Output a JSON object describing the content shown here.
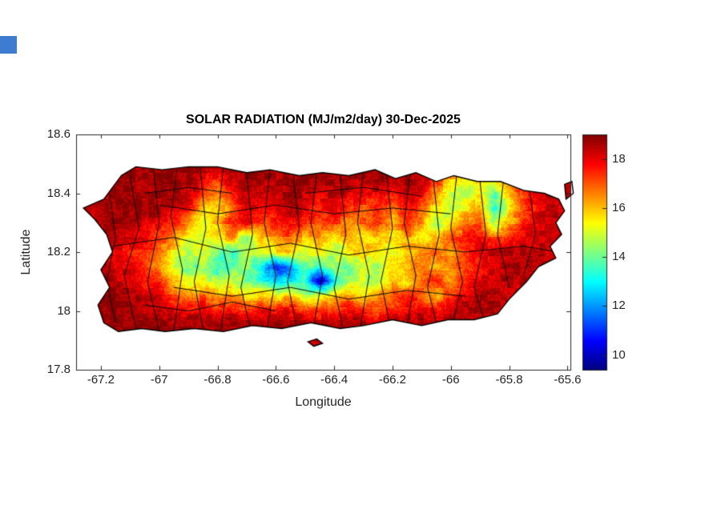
{
  "artifacts": {
    "top_left_square_color": "#3d7cd0"
  },
  "chart_data": {
    "type": "heatmap",
    "title": "SOLAR RADIATION (MJ/m2/day) 30-Dec-2025",
    "xlabel": "Longitude",
    "ylabel": "Latitude",
    "xlim": [
      -67.285,
      -65.59
    ],
    "ylim": [
      17.8,
      18.6
    ],
    "xticks": [
      -67.2,
      -67,
      -66.8,
      -66.6,
      -66.4,
      -66.2,
      -66,
      -65.8,
      -65.6
    ],
    "xtick_labels": [
      "-67.2",
      "-67",
      "-66.8",
      "-66.6",
      "-66.4",
      "-66.2",
      "-66",
      "-65.8",
      "-65.6"
    ],
    "yticks": [
      17.8,
      18,
      18.2,
      18.4,
      18.6
    ],
    "ytick_labels": [
      "17.8",
      "18",
      "18.2",
      "18.4",
      "18.6"
    ],
    "colormap": "jet",
    "clim": [
      9.4,
      19
    ],
    "colorbar_ticks": [
      10,
      12,
      14,
      16,
      18
    ],
    "colorbar_tick_labels": [
      "10",
      "12",
      "14",
      "16",
      "18"
    ],
    "grid": {
      "lon_start": -67.25,
      "lon_step": 0.05,
      "lat_start": 18.5,
      "lat_step": -0.05,
      "values": [
        [
          null,
          null,
          null,
          18.8,
          18.8,
          18.8,
          18.8,
          18.8,
          18.5,
          18.3,
          18.8,
          18.8,
          18.8,
          18.8,
          18.5,
          18.8,
          18.8,
          18.8,
          18.8,
          18.8,
          18.8,
          18.8,
          18.8,
          18.5,
          18.3,
          18.3,
          null,
          null,
          null,
          null,
          null,
          null,
          null,
          null
        ],
        [
          null,
          null,
          18.5,
          18.8,
          18.8,
          18.8,
          18.8,
          18.8,
          18.2,
          17.5,
          18.5,
          18.8,
          18.8,
          18.5,
          18.8,
          18.8,
          18.5,
          18.8,
          18.8,
          18.5,
          18.8,
          18.5,
          18.8,
          18.5,
          17.5,
          16.0,
          15.5,
          15.0,
          16.0,
          17.0,
          18.0,
          18.5,
          18.3,
          null
        ],
        [
          null,
          18.5,
          18.8,
          18.8,
          18.5,
          18.8,
          18.8,
          18.5,
          17.5,
          16.5,
          17.5,
          18.5,
          18.2,
          18.5,
          18.8,
          18.5,
          18.2,
          18.5,
          18.2,
          17.8,
          18.2,
          17.8,
          18.5,
          17.8,
          16.5,
          15.0,
          14.5,
          15.5,
          14.0,
          16.0,
          17.5,
          18.2,
          18.5,
          18.3
        ],
        [
          18.3,
          18.3,
          18.8,
          18.8,
          18.8,
          18.5,
          18.2,
          17.8,
          16.0,
          15.5,
          17.0,
          18.2,
          17.8,
          18.2,
          18.5,
          18.0,
          17.5,
          18.0,
          17.5,
          17.0,
          17.5,
          16.5,
          17.8,
          17.0,
          15.5,
          14.5,
          15.5,
          16.5,
          13.0,
          15.5,
          17.0,
          18.0,
          18.3,
          18.0
        ],
        [
          18.5,
          18.5,
          18.8,
          18.5,
          18.2,
          18.0,
          17.5,
          16.5,
          15.0,
          16.0,
          17.5,
          17.8,
          17.0,
          17.5,
          18.0,
          17.5,
          17.0,
          17.5,
          16.5,
          17.0,
          17.5,
          16.0,
          17.5,
          16.5,
          14.5,
          15.5,
          16.5,
          17.0,
          14.5,
          16.0,
          17.5,
          18.2,
          18.5,
          18.3
        ],
        [
          null,
          18.3,
          18.5,
          18.2,
          17.8,
          17.2,
          16.5,
          15.5,
          15.0,
          15.5,
          16.5,
          14.0,
          16.0,
          16.5,
          17.0,
          16.0,
          16.5,
          15.5,
          16.5,
          15.5,
          16.0,
          15.5,
          16.5,
          15.0,
          16.0,
          17.0,
          17.5,
          17.8,
          17.0,
          17.5,
          18.0,
          18.3,
          18.5,
          null
        ],
        [
          null,
          18.2,
          18.0,
          17.8,
          17.5,
          17.0,
          15.5,
          14.5,
          15.0,
          14.0,
          13.5,
          14.5,
          15.0,
          15.5,
          16.0,
          15.0,
          15.5,
          14.5,
          15.5,
          16.0,
          15.5,
          15.0,
          16.0,
          16.5,
          17.0,
          16.5,
          17.5,
          18.0,
          18.3,
          18.5,
          18.5,
          18.5,
          18.3,
          null
        ],
        [
          null,
          18.5,
          18.2,
          18.0,
          17.5,
          16.5,
          15.0,
          14.0,
          14.5,
          13.5,
          14.0,
          14.5,
          13.0,
          11.0,
          12.0,
          14.0,
          13.5,
          14.5,
          14.0,
          15.0,
          14.5,
          15.5,
          16.0,
          16.5,
          16.0,
          16.5,
          17.0,
          17.8,
          18.2,
          18.5,
          18.5,
          18.3,
          null,
          null
        ],
        [
          null,
          18.8,
          18.5,
          18.2,
          17.8,
          17.5,
          16.0,
          15.0,
          15.5,
          14.5,
          15.0,
          14.0,
          13.5,
          12.5,
          13.0,
          13.5,
          9.5,
          13.0,
          14.5,
          15.0,
          14.5,
          16.0,
          15.5,
          17.0,
          17.5,
          16.5,
          17.5,
          18.0,
          18.3,
          18.5,
          18.5,
          null,
          null,
          null
        ],
        [
          null,
          18.8,
          18.8,
          18.5,
          18.2,
          18.0,
          17.0,
          16.5,
          17.0,
          16.0,
          16.5,
          15.5,
          16.0,
          15.5,
          16.0,
          14.5,
          15.5,
          16.0,
          16.5,
          15.5,
          16.5,
          17.0,
          17.5,
          17.0,
          16.0,
          17.5,
          18.2,
          18.5,
          18.5,
          18.3,
          null,
          null,
          null,
          null
        ],
        [
          null,
          18.8,
          18.8,
          18.8,
          18.5,
          18.5,
          18.2,
          18.0,
          18.2,
          17.8,
          18.0,
          17.5,
          18.0,
          17.8,
          18.0,
          17.5,
          17.0,
          17.5,
          18.0,
          17.5,
          17.0,
          17.5,
          18.0,
          18.2,
          17.8,
          18.2,
          18.5,
          18.5,
          null,
          null,
          null,
          null,
          null,
          null
        ],
        [
          null,
          18.8,
          18.8,
          18.8,
          18.8,
          18.8,
          18.5,
          18.8,
          18.5,
          18.8,
          18.8,
          18.5,
          18.8,
          18.8,
          18.5,
          18.8,
          18.8,
          18.5,
          18.8,
          18.8,
          18.5,
          18.8,
          18.8,
          18.8,
          18.5,
          18.8,
          null,
          null,
          null,
          null,
          null,
          null,
          null,
          null
        ],
        [
          null,
          null,
          18.8,
          18.8,
          null,
          null,
          null,
          null,
          null,
          null,
          null,
          null,
          null,
          null,
          null,
          null,
          18.5,
          null,
          null,
          null,
          null,
          null,
          null,
          null,
          null,
          null,
          null,
          null,
          null,
          null,
          null,
          null,
          null,
          null
        ]
      ]
    },
    "island_outline": [
      [
        -67.13,
        18.46
      ],
      [
        -67.08,
        18.49
      ],
      [
        -66.99,
        18.48
      ],
      [
        -66.9,
        18.49
      ],
      [
        -66.8,
        18.49
      ],
      [
        -66.7,
        18.47
      ],
      [
        -66.62,
        18.48
      ],
      [
        -66.52,
        18.46
      ],
      [
        -66.44,
        18.47
      ],
      [
        -66.35,
        18.46
      ],
      [
        -66.26,
        18.48
      ],
      [
        -66.19,
        18.45
      ],
      [
        -66.12,
        18.47
      ],
      [
        -66.05,
        18.44
      ],
      [
        -65.99,
        18.46
      ],
      [
        -65.91,
        18.44
      ],
      [
        -65.83,
        18.44
      ],
      [
        -65.75,
        18.41
      ],
      [
        -65.68,
        18.4
      ],
      [
        -65.63,
        18.38
      ],
      [
        -65.61,
        18.34
      ],
      [
        -65.64,
        18.3
      ],
      [
        -65.62,
        18.26
      ],
      [
        -65.66,
        18.22
      ],
      [
        -65.64,
        18.18
      ],
      [
        -65.7,
        18.15
      ],
      [
        -65.74,
        18.1
      ],
      [
        -65.8,
        18.04
      ],
      [
        -65.84,
        17.99
      ],
      [
        -65.92,
        17.97
      ],
      [
        -66.01,
        17.97
      ],
      [
        -66.1,
        17.95
      ],
      [
        -66.2,
        17.97
      ],
      [
        -66.3,
        17.95
      ],
      [
        -66.38,
        17.94
      ],
      [
        -66.48,
        17.96
      ],
      [
        -66.58,
        17.94
      ],
      [
        -66.68,
        17.95
      ],
      [
        -66.78,
        17.93
      ],
      [
        -66.88,
        17.94
      ],
      [
        -66.98,
        17.93
      ],
      [
        -67.06,
        17.94
      ],
      [
        -67.14,
        17.93
      ],
      [
        -67.19,
        17.96
      ],
      [
        -67.21,
        18.02
      ],
      [
        -67.17,
        18.08
      ],
      [
        -67.2,
        18.14
      ],
      [
        -67.16,
        18.2
      ],
      [
        -67.18,
        18.26
      ],
      [
        -67.22,
        18.31
      ],
      [
        -67.26,
        18.35
      ],
      [
        -67.19,
        18.38
      ],
      [
        -67.16,
        18.42
      ]
    ],
    "islets": [
      [
        [
          -65.61,
          18.43
        ],
        [
          -65.585,
          18.44
        ],
        [
          -65.58,
          18.4
        ],
        [
          -65.605,
          18.38
        ]
      ],
      [
        [
          -66.49,
          17.895
        ],
        [
          -66.46,
          17.905
        ],
        [
          -66.44,
          17.89
        ],
        [
          -66.47,
          17.88
        ]
      ]
    ],
    "boundaries": [
      [
        [
          -67.17,
          18.4
        ],
        [
          -67.15,
          18.25
        ],
        [
          -67.18,
          18.1
        ],
        [
          -67.15,
          17.96
        ]
      ],
      [
        [
          -67.1,
          18.46
        ],
        [
          -67.07,
          18.28
        ],
        [
          -67.12,
          18.12
        ],
        [
          -67.08,
          17.94
        ]
      ],
      [
        [
          -67.02,
          18.48
        ],
        [
          -67.0,
          18.3
        ],
        [
          -67.04,
          18.1
        ],
        [
          -67.0,
          17.93
        ]
      ],
      [
        [
          -66.94,
          18.48
        ],
        [
          -66.96,
          18.32
        ],
        [
          -66.92,
          18.14
        ],
        [
          -66.95,
          17.93
        ]
      ],
      [
        [
          -66.86,
          18.49
        ],
        [
          -66.84,
          18.28
        ],
        [
          -66.88,
          18.1
        ],
        [
          -66.85,
          17.94
        ]
      ],
      [
        [
          -66.78,
          18.49
        ],
        [
          -66.8,
          18.3
        ],
        [
          -66.76,
          18.12
        ],
        [
          -66.79,
          17.93
        ]
      ],
      [
        [
          -66.7,
          18.47
        ],
        [
          -66.68,
          18.26
        ],
        [
          -66.72,
          18.08
        ],
        [
          -66.69,
          17.95
        ]
      ],
      [
        [
          -66.62,
          18.48
        ],
        [
          -66.64,
          18.3
        ],
        [
          -66.6,
          18.12
        ],
        [
          -66.63,
          17.94
        ]
      ],
      [
        [
          -66.54,
          18.46
        ],
        [
          -66.52,
          18.28
        ],
        [
          -66.56,
          18.1
        ],
        [
          -66.53,
          17.95
        ]
      ],
      [
        [
          -66.46,
          18.47
        ],
        [
          -66.48,
          18.3
        ],
        [
          -66.44,
          18.12
        ],
        [
          -66.47,
          17.95
        ]
      ],
      [
        [
          -66.38,
          18.46
        ],
        [
          -66.36,
          18.26
        ],
        [
          -66.4,
          18.08
        ],
        [
          -66.37,
          17.94
        ]
      ],
      [
        [
          -66.3,
          18.47
        ],
        [
          -66.32,
          18.3
        ],
        [
          -66.28,
          18.12
        ],
        [
          -66.31,
          17.95
        ]
      ],
      [
        [
          -66.22,
          18.46
        ],
        [
          -66.2,
          18.28
        ],
        [
          -66.24,
          18.1
        ],
        [
          -66.21,
          17.96
        ]
      ],
      [
        [
          -66.14,
          18.47
        ],
        [
          -66.16,
          18.3
        ],
        [
          -66.12,
          18.12
        ],
        [
          -66.15,
          17.95
        ]
      ],
      [
        [
          -66.06,
          18.45
        ],
        [
          -66.04,
          18.26
        ],
        [
          -66.08,
          18.08
        ],
        [
          -66.05,
          17.96
        ]
      ],
      [
        [
          -65.98,
          18.46
        ],
        [
          -66.0,
          18.28
        ],
        [
          -65.96,
          18.1
        ],
        [
          -65.99,
          17.97
        ]
      ],
      [
        [
          -65.9,
          18.44
        ],
        [
          -65.88,
          18.26
        ],
        [
          -65.92,
          18.08
        ],
        [
          -65.89,
          17.98
        ]
      ],
      [
        [
          -65.82,
          18.44
        ],
        [
          -65.84,
          18.26
        ],
        [
          -65.8,
          18.08
        ]
      ],
      [
        [
          -65.73,
          18.41
        ],
        [
          -65.71,
          18.26
        ],
        [
          -65.75,
          18.12
        ]
      ],
      [
        [
          -67.16,
          18.22
        ],
        [
          -66.95,
          18.25
        ],
        [
          -66.75,
          18.2
        ],
        [
          -66.55,
          18.23
        ],
        [
          -66.35,
          18.19
        ],
        [
          -66.15,
          18.22
        ],
        [
          -65.95,
          18.2
        ],
        [
          -65.75,
          18.22
        ],
        [
          -65.63,
          18.2
        ]
      ],
      [
        [
          -67.0,
          18.36
        ],
        [
          -66.8,
          18.33
        ],
        [
          -66.6,
          18.36
        ],
        [
          -66.4,
          18.33
        ],
        [
          -66.2,
          18.35
        ],
        [
          -66.0,
          18.33
        ]
      ],
      [
        [
          -66.95,
          18.08
        ],
        [
          -66.75,
          18.05
        ],
        [
          -66.55,
          18.08
        ],
        [
          -66.35,
          18.04
        ],
        [
          -66.15,
          18.07
        ],
        [
          -65.95,
          18.05
        ]
      ],
      [
        [
          -66.5,
          18.4
        ],
        [
          -66.3,
          18.42
        ],
        [
          -66.1,
          18.39
        ]
      ],
      [
        [
          -67.05,
          18.4
        ],
        [
          -66.9,
          18.42
        ],
        [
          -66.75,
          18.4
        ]
      ],
      [
        [
          -67.05,
          18.02
        ],
        [
          -66.9,
          18.0
        ],
        [
          -66.75,
          18.03
        ],
        [
          -66.6,
          18.0
        ]
      ]
    ]
  }
}
